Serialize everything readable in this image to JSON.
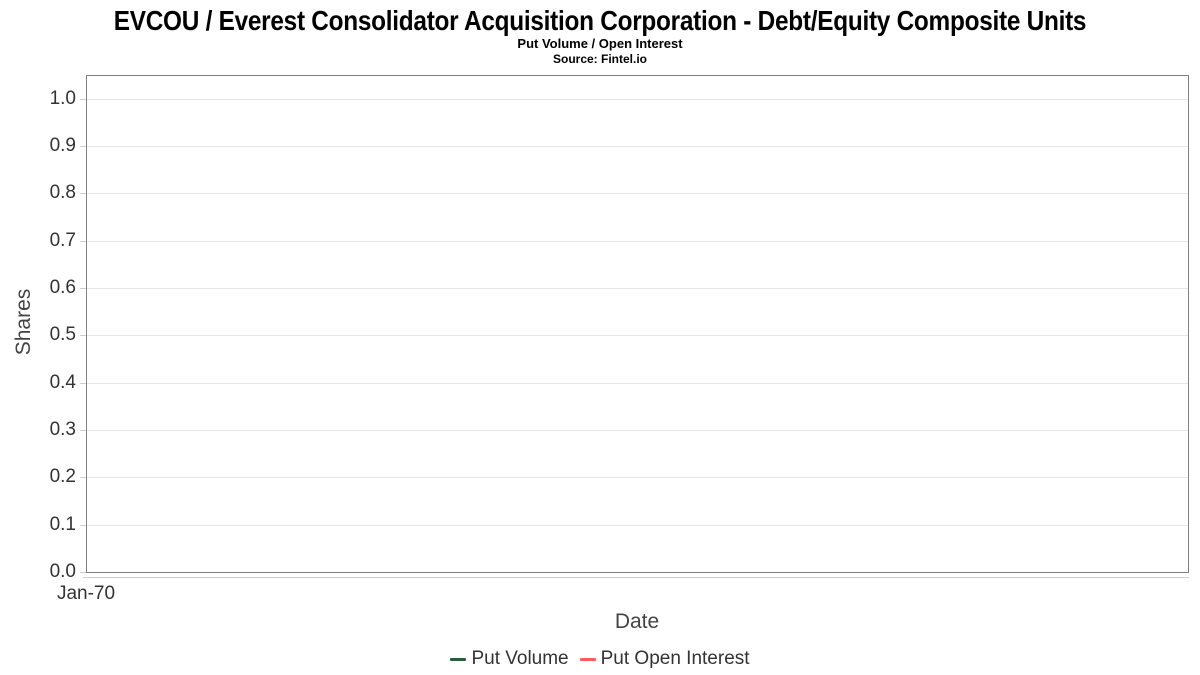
{
  "chart_data": {
    "type": "line",
    "title": "EVCOU / Everest Consolidator Acquisition Corporation - Debt/Equity Composite Units",
    "subtitle": "Put Volume / Open Interest",
    "source": "Source: Fintel.io",
    "xlabel": "Date",
    "ylabel": "Shares",
    "ylim": [
      0,
      1.05
    ],
    "ytick_labels": [
      "0.0",
      "0.1",
      "0.2",
      "0.3",
      "0.4",
      "0.5",
      "0.6",
      "0.7",
      "0.8",
      "0.9",
      "1.0"
    ],
    "xtick_labels": [
      "Jan-70"
    ],
    "grid": true,
    "legend_position": "bottom-center",
    "series": [
      {
        "name": "Put Volume",
        "color": "#2e5c3a",
        "x": [],
        "values": []
      },
      {
        "name": "Put Open Interest",
        "color": "#fc5e5e",
        "x": [],
        "values": []
      }
    ]
  },
  "colors": {
    "background": "#ffffff",
    "plot_border": "#808080",
    "gridline": "#e6e6e6",
    "axis_line": "#cccccc",
    "tick": "#cccccc",
    "title_text": "#000000",
    "tick_label_text": "#333333",
    "axis_title_text": "#444444",
    "legend_text": "#333333"
  }
}
